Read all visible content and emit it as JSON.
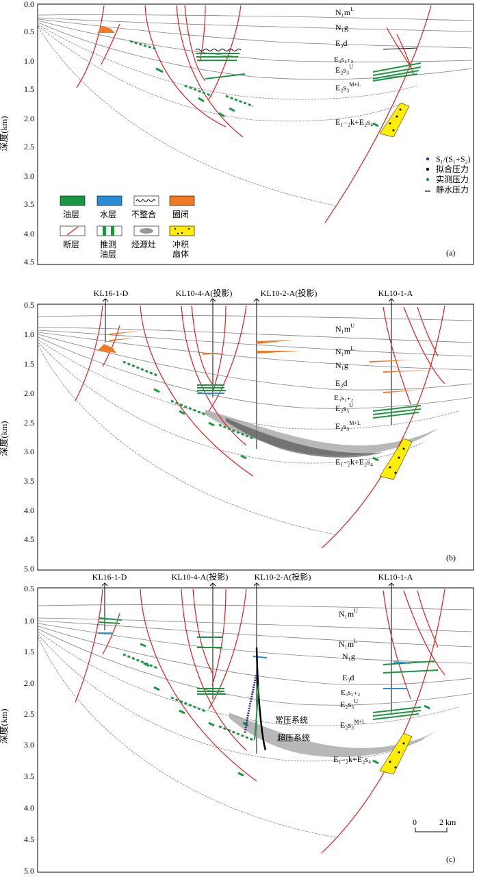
{
  "y_axis_label": "深度(km)",
  "panels": [
    {
      "id": "a",
      "label": "(a)",
      "ticks": [
        "0.0",
        "0.5",
        "1.0",
        "1.5",
        "2.0",
        "2.5",
        "3.0",
        "3.5",
        "4.0",
        "4.5"
      ],
      "wells": [],
      "strata": [
        "N₁m",
        "L",
        "N₁g",
        "E₃d",
        "E₃s₁₊₂",
        "E₂s₃",
        "U",
        "E₂s₃",
        "M+L",
        "E₁₋₂k+E₂s₄"
      ],
      "pressure_legend": [
        "S₁/(S₁+S₂)",
        "拟合压力",
        "实测压力",
        "静水压力"
      ],
      "legend": [
        "油层",
        "水层",
        "不整合",
        "圈闭",
        "断层",
        "推测",
        "油层",
        "烃源灶",
        "冲积",
        "扇体"
      ]
    },
    {
      "id": "b",
      "label": "(b)",
      "ticks": [
        "0.5",
        "1.0",
        "1.5",
        "2.0",
        "2.5",
        "3.0",
        "3.5",
        "4.0",
        "4.5",
        "5.0"
      ],
      "wells": [
        "KL16-1-D",
        "KL10-4-A(投影)",
        "KL10-2-A(投影)",
        "KL10-1-A"
      ],
      "strata": [
        "N₁m",
        "U",
        "N₁m",
        "L",
        "N₁g",
        "E₃d",
        "E₃s₁₊₂",
        "E₂s₃",
        "U",
        "E₂s₃",
        "M+L",
        "E₁₋₂k+E₂s₄"
      ]
    },
    {
      "id": "c",
      "label": "(c)",
      "ticks": [
        "0.5",
        "1.0",
        "1.5",
        "2.0",
        "2.5",
        "3.0",
        "3.5",
        "4.0",
        "4.5",
        "5.0"
      ],
      "wells": [
        "KL16-1-D",
        "KL10-4-A(投影)",
        "KL10-2-A(投影)",
        "KL10-1-A"
      ],
      "strata": [
        "N₁m",
        "U",
        "N₁m",
        "L",
        "N₁g",
        "E₃d",
        "E₃s₁₊₂",
        "E₂s₃",
        "U",
        "E₂s₃",
        "M+L",
        "E₁₋₂k+E₂s₄"
      ],
      "systems": [
        "常压系统",
        "超压系统"
      ],
      "scalebar": [
        "0",
        "2 km"
      ]
    }
  ],
  "colors": {
    "fault": "#e41a1c",
    "oil": "#1a9641",
    "water": "#2b8cd6",
    "trap": "#f07a23",
    "horizon": "#7f7f7f",
    "source": "#8c8c8c",
    "fan": "#ffee00",
    "s_ratio": "#2b2b8f",
    "fit": "#000000",
    "measured": "#1a9641"
  }
}
